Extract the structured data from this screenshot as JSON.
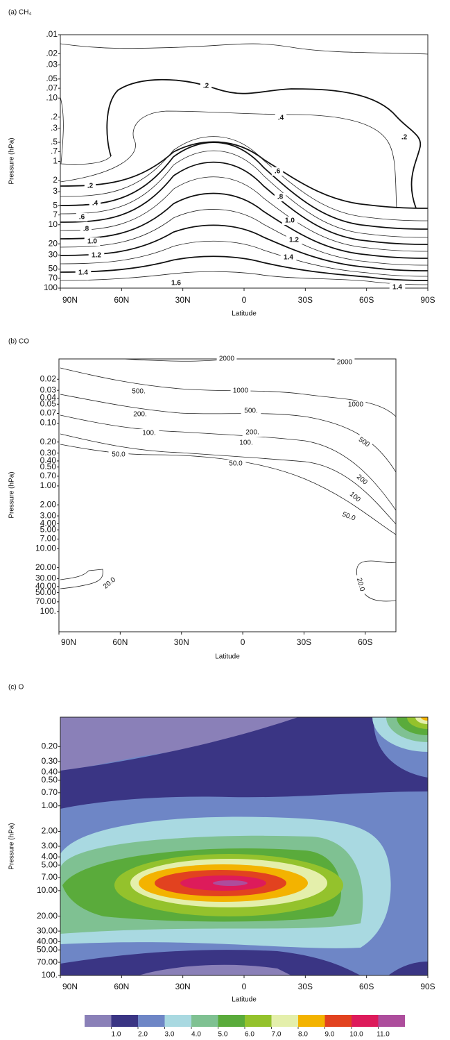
{
  "chart_data": [
    {
      "type": "contour",
      "title": "(a) CH₄",
      "xlabel": "Latitude",
      "ylabel": "Pressure (hPa)",
      "xlim": [
        90,
        -90
      ],
      "xticks": [
        {
          "value": 90,
          "label": "90N"
        },
        {
          "value": 60,
          "label": "60N"
        },
        {
          "value": 30,
          "label": "30N"
        },
        0,
        {
          "value": -30,
          "label": "30S"
        },
        {
          "value": -60,
          "label": "60S"
        },
        {
          "value": -90,
          "label": "90S"
        }
      ],
      "ylim": [
        100,
        0.01
      ],
      "log_y": true,
      "yticks": [
        {
          "value": 0.01,
          "label": ".01"
        },
        {
          "value": 0.02,
          "label": ".02"
        },
        {
          "value": 0.03,
          "label": ".03"
        },
        {
          "value": 0.05,
          "label": ".05"
        },
        {
          "value": 0.07,
          "label": ".07"
        },
        {
          "value": 0.1,
          "label": ".10"
        },
        {
          "value": 0.2,
          "label": ".2"
        },
        {
          "value": 0.3,
          "label": ".3"
        },
        {
          "value": 0.5,
          "label": ".5"
        },
        {
          "value": 0.7,
          "label": ".7"
        },
        1,
        2,
        3,
        5,
        7,
        10,
        20,
        30,
        50,
        70,
        100
      ],
      "contour_labels": [
        {
          "value": 0.2,
          "label": ".2"
        },
        {
          "value": 0.4,
          "label": ".4"
        },
        {
          "value": 0.2,
          "label": ".2"
        },
        {
          "value": 0.6,
          "label": ".6"
        },
        {
          "value": 0.2,
          "label": ".2"
        },
        {
          "value": 0.8,
          "label": ".8"
        },
        {
          "value": 0.4,
          "label": ".4"
        },
        {
          "value": 0.6,
          "label": ".6"
        },
        {
          "value": 1,
          "label": "1.0"
        },
        {
          "value": 0.8,
          "label": ".8"
        },
        1.2,
        {
          "value": 1,
          "label": "1.0"
        },
        1.4,
        1.2,
        1.4,
        1.6,
        1.4
      ]
    },
    {
      "type": "contour",
      "title": "(b) CO",
      "xlabel": "Latitude",
      "ylabel": "Pressure (hPa)",
      "xlim": [
        90,
        -75
      ],
      "xticks": [
        {
          "value": 90,
          "label": "90N"
        },
        {
          "value": 60,
          "label": "60N"
        },
        {
          "value": 30,
          "label": "30N"
        },
        0,
        {
          "value": -30,
          "label": "30S"
        },
        {
          "value": -60,
          "label": "60S"
        }
      ],
      "ylim": [
        210,
        0.0095
      ],
      "log_y": true,
      "yticks": [
        0.02,
        0.03,
        0.04,
        0.05,
        0.07,
        {
          "value": 0.1,
          "label": "0.10"
        },
        {
          "value": 0.2,
          "label": "0.20"
        },
        {
          "value": 0.3,
          "label": "0.30"
        },
        {
          "value": 0.4,
          "label": "0.40"
        },
        {
          "value": 0.5,
          "label": "0.50"
        },
        {
          "value": 0.7,
          "label": "0.70"
        },
        {
          "value": 1,
          "label": "1.00"
        },
        {
          "value": 2,
          "label": "2.00"
        },
        {
          "value": 3,
          "label": "3.00"
        },
        {
          "value": 4,
          "label": "4.00"
        },
        {
          "value": 5,
          "label": "5.00"
        },
        {
          "value": 7,
          "label": "7.00"
        },
        {
          "value": 10,
          "label": "10.00"
        },
        {
          "value": 20,
          "label": "20.00"
        },
        {
          "value": 30,
          "label": "30.00"
        },
        {
          "value": 40,
          "label": "40.00"
        },
        {
          "value": 50,
          "label": "50.00"
        },
        {
          "value": 70,
          "label": "70.00"
        },
        {
          "value": 100,
          "label": "100."
        }
      ],
      "contour_labels": [
        2000,
        2000,
        {
          "value": 500,
          "label": "500."
        },
        1000,
        1000,
        {
          "value": 500,
          "label": "500."
        },
        500,
        {
          "value": 200,
          "label": "200."
        },
        {
          "value": 200,
          "label": "200."
        },
        200,
        {
          "value": 100,
          "label": "100."
        },
        {
          "value": 100,
          "label": "100."
        },
        100,
        {
          "value": 50,
          "label": "50.0"
        },
        {
          "value": 50,
          "label": "50.0"
        },
        {
          "value": 50,
          "label": "50.0"
        },
        {
          "value": 20,
          "label": "20.0"
        },
        {
          "value": 20,
          "label": "20.0"
        }
      ]
    },
    {
      "type": "filled_contour",
      "title": "(c) O",
      "xlabel": "Latitude",
      "ylabel": "Pressure (hPa)",
      "xlim": [
        90,
        -90
      ],
      "xticks": [
        {
          "value": 90,
          "label": "90N"
        },
        {
          "value": 60,
          "label": "60N"
        },
        {
          "value": 30,
          "label": "30N"
        },
        0,
        {
          "value": -30,
          "label": "30S"
        },
        {
          "value": -60,
          "label": "60S"
        },
        {
          "value": -90,
          "label": "90S"
        }
      ],
      "ylim": [
        100,
        0.09
      ],
      "log_y": true,
      "yticks": [
        {
          "value": 0.2,
          "label": "0.20"
        },
        {
          "value": 0.3,
          "label": "0.30"
        },
        {
          "value": 0.4,
          "label": "0.40"
        },
        {
          "value": 0.5,
          "label": "0.50"
        },
        {
          "value": 0.7,
          "label": "0.70"
        },
        {
          "value": 1,
          "label": "1.00"
        },
        {
          "value": 2,
          "label": "2.00"
        },
        {
          "value": 3,
          "label": "3.00"
        },
        {
          "value": 4,
          "label": "4.00"
        },
        {
          "value": 5,
          "label": "5.00"
        },
        {
          "value": 7,
          "label": "7.00"
        },
        {
          "value": 10,
          "label": "10.00"
        },
        {
          "value": 20,
          "label": "20.00"
        },
        {
          "value": 30,
          "label": "30.00"
        },
        {
          "value": 40,
          "label": "40.00"
        },
        {
          "value": 50,
          "label": "50.00"
        },
        {
          "value": 70,
          "label": "70.00"
        },
        {
          "value": 100,
          "label": "100."
        }
      ],
      "colorbar": {
        "colors": [
          "#8a80b8",
          "#3a3584",
          "#6e86c6",
          "#a9d9e1",
          "#7fc192",
          "#5aab3b",
          "#94c22c",
          "#e4efab",
          "#f3b300",
          "#e2421f",
          "#dd1b5b",
          "#ad4d9c"
        ],
        "ticks": [
          {
            "value": 1,
            "label": "1.0"
          },
          {
            "value": 2,
            "label": "2.0"
          },
          {
            "value": 3,
            "label": "3.0"
          },
          {
            "value": 4,
            "label": "4.0"
          },
          {
            "value": 5,
            "label": "5.0"
          },
          {
            "value": 6,
            "label": "6.0"
          },
          {
            "value": 7,
            "label": "7.0"
          },
          {
            "value": 8,
            "label": "8.0"
          },
          {
            "value": 9,
            "label": "9.0"
          },
          {
            "value": 10,
            "label": "10.0"
          },
          {
            "value": 11,
            "label": "11.0"
          }
        ]
      }
    }
  ]
}
